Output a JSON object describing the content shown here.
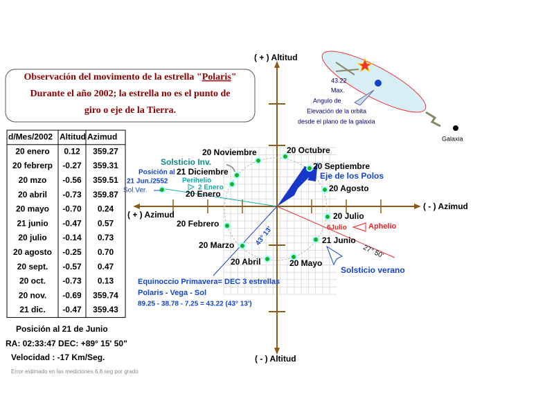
{
  "title": {
    "prefix": "Observación del movimento de la estrella \"",
    "link": "Polaris",
    "suffix": "\"",
    "line2": "Durante el año 2002; la estrella no es el punto de",
    "line3": "giro o eje de la Tierra."
  },
  "table": {
    "header": [
      "d/Mes/2002",
      "Altitud",
      "Azimud"
    ],
    "rows": [
      [
        "20 enero",
        "0.12",
        "359.27"
      ],
      [
        "20 febrerp",
        "-0.27",
        "359.31"
      ],
      [
        "20 mzo",
        "-0.56",
        "359.51"
      ],
      [
        "20 abril",
        "-0.73",
        "359.87"
      ],
      [
        "20 mayo",
        "-0.70",
        "0.24"
      ],
      [
        "21 junio",
        "-0.47",
        "0.57"
      ],
      [
        "20 julio",
        "-0.14",
        "0.73"
      ],
      [
        "20 agosto",
        "-0.25",
        "0.70"
      ],
      [
        "20 sept.",
        "-0.57",
        "0.47"
      ],
      [
        "20 oct.",
        "-0.73",
        "0.13"
      ],
      [
        "20 nov.",
        "-0.69",
        "359.74"
      ],
      [
        "21 dic.",
        "-0.47",
        "359.43"
      ]
    ]
  },
  "position": {
    "title": "Posición al 21 de Junio",
    "ra_dec": "RA: 02:33:47 DEC: +89° 15' 50\"",
    "velocity": "Velocidad : -17 Km/Seg.",
    "error_note": "Error estimado en las mediciones 6.8 seg por grado"
  },
  "axes": {
    "top": "( + ) Altitud",
    "bottom": "( - ) Altitud",
    "left": "( + ) Azimud",
    "right": "( - ) Azimud"
  },
  "galaxy": {
    "angle": "43.22",
    "max": "Max.",
    "line1": "Angulo de",
    "line2": "Elevación de la orbita",
    "line3": "desde el plano de la galaxia",
    "label": "Galaxia"
  },
  "points": [
    "20 Noviembre",
    "20 Octubre",
    "20 Septiembre",
    "21 Diciembre",
    "20 Agosto",
    "20 Enero",
    "20 Julio",
    "20 Febrero",
    "21 Junio",
    "20 Marzo",
    "20 Abril",
    "20 Mayo"
  ],
  "annotations": {
    "solsticio_inv": "Solsticio Inv.",
    "posicion": "Posición al",
    "posicion_date": "21 Jun./2552",
    "sol_ver": "Sol.Ver.",
    "perihelio": "Perihelio",
    "perihelio_date": "2 Enero",
    "eje": "Eje de los Polos",
    "aphelio_date": "6Julio",
    "aphelio": "Aphelio",
    "angle_aphelio": "27° 50'",
    "angle_equinox": "43° 13'",
    "solsticio_verano": "Solsticio verano",
    "equinox1": "Equinoccio Primavera= DEC 3 estrellas",
    "equinox2": "Polaris - Vega - Sol",
    "equinox3": "89.25 - 38.78 - 7.25 =  43.22 (43° 13')"
  }
}
